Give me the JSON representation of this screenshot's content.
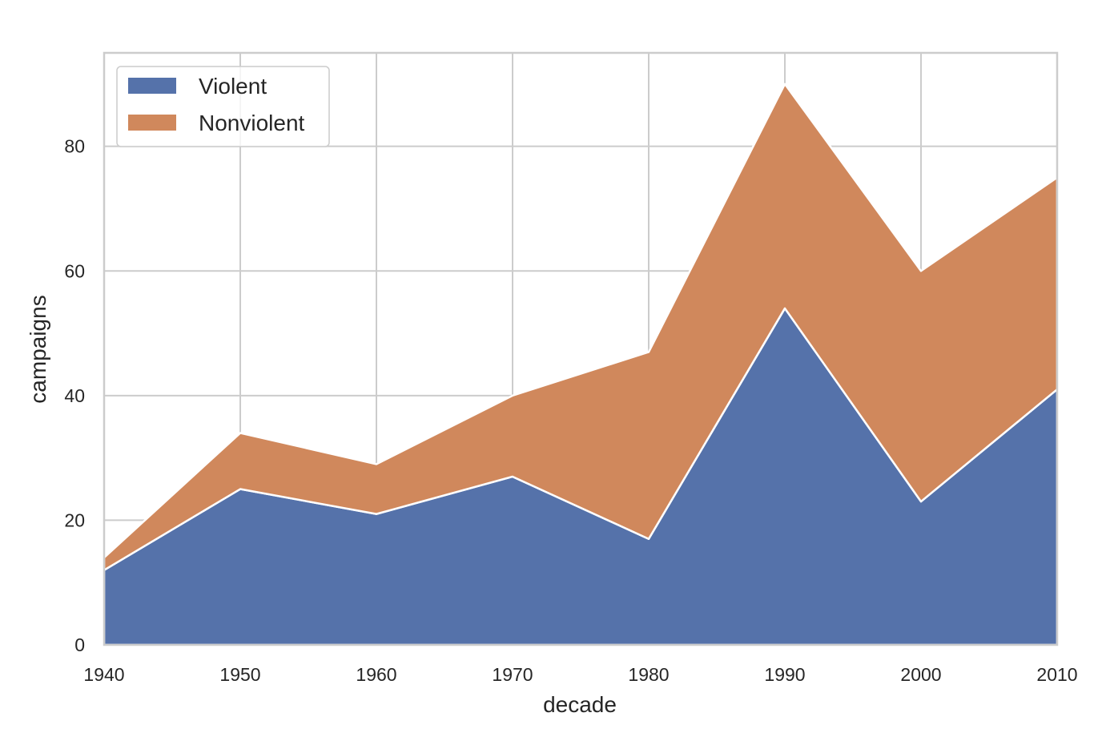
{
  "chart_data": {
    "type": "area",
    "stacked": true,
    "x": [
      1940,
      1950,
      1960,
      1970,
      1980,
      1990,
      2000,
      2010
    ],
    "series": [
      {
        "name": "Violent",
        "values": [
          12,
          25,
          21,
          27,
          17,
          54,
          23,
          41
        ],
        "color": "#5572aa"
      },
      {
        "name": "Nonviolent",
        "values": [
          2,
          9,
          8,
          13,
          30,
          36,
          37,
          34
        ],
        "color": "#d0885c"
      }
    ],
    "xlabel": "decade",
    "ylabel": "campaigns",
    "xlim": [
      1940,
      2010
    ],
    "ylim": [
      0,
      95
    ],
    "xticks": [
      "1940",
      "1950",
      "1960",
      "1970",
      "1980",
      "1990",
      "2000",
      "2010"
    ],
    "yticks": [
      "0",
      "20",
      "40",
      "60",
      "80"
    ],
    "ytick_values": [
      0,
      20,
      40,
      60,
      80
    ],
    "grid": true,
    "legend_position": "top-left"
  }
}
